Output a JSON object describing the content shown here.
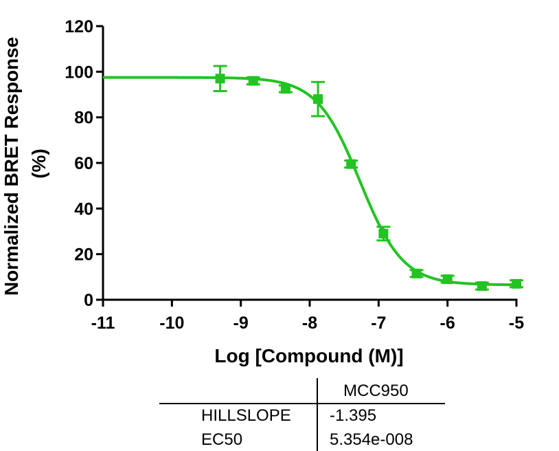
{
  "chart_data": {
    "type": "scatter",
    "xlabel": "Log [Compound (M)]",
    "ylabel": [
      "Normalized BRET Response",
      "(%)"
    ],
    "xlim": [
      -11,
      -5
    ],
    "ylim": [
      0,
      120
    ],
    "x_ticks": [
      -11,
      -10,
      -9,
      -8,
      -7,
      -6,
      -5
    ],
    "y_ticks": [
      0,
      20,
      40,
      60,
      80,
      100,
      120
    ],
    "grid": false,
    "series_color": "#22c322",
    "series": [
      {
        "points": [
          {
            "x": -9.3,
            "y": 97,
            "err": 5.5
          },
          {
            "x": -8.82,
            "y": 96,
            "err": 1.5
          },
          {
            "x": -8.35,
            "y": 92.5,
            "err": 1.5
          },
          {
            "x": -7.88,
            "y": 88,
            "err": 7.5
          },
          {
            "x": -7.4,
            "y": 59.5,
            "err": 1.5
          },
          {
            "x": -6.93,
            "y": 29,
            "err": 3
          },
          {
            "x": -6.45,
            "y": 11.5,
            "err": 1.5
          },
          {
            "x": -6.0,
            "y": 9,
            "err": 1.5
          },
          {
            "x": -5.5,
            "y": 6,
            "err": 1.5
          },
          {
            "x": -5.0,
            "y": 7,
            "err": 1.5
          }
        ],
        "fit": {
          "model": "sigmoidal-dose-response",
          "top": 97.5,
          "bottom": 6.5,
          "logEC50": -7.2713,
          "hillslope": -1.395
        }
      }
    ]
  },
  "results_table": {
    "column_header": "MCC950",
    "rows": [
      {
        "label": "HILLSLOPE",
        "value": "-1.395"
      },
      {
        "label": "EC50",
        "value": "5.354e-008"
      }
    ]
  }
}
